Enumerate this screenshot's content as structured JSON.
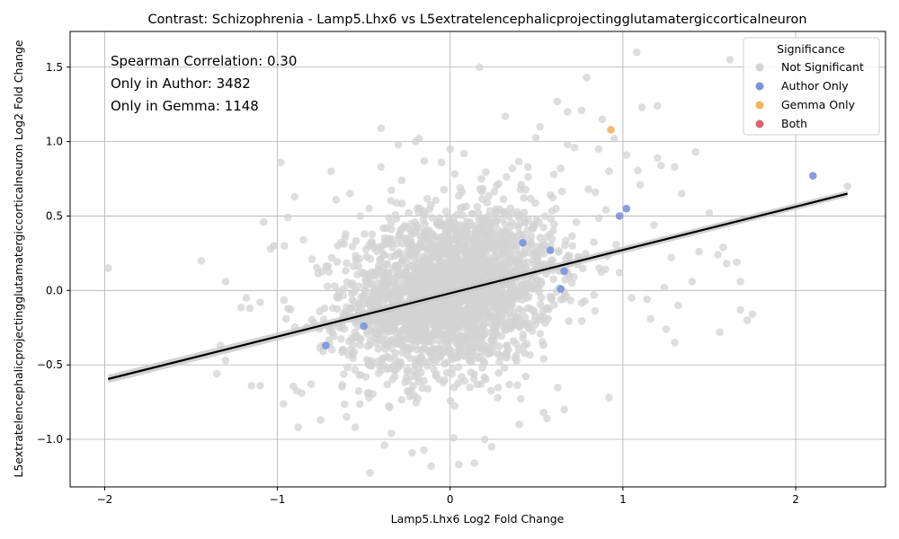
{
  "chart_data": {
    "type": "scatter",
    "title": "Contrast: Schizophrenia - Lamp5.Lhx6 vs L5extratelencephalicprojectingglutamatergiccorticalneuron",
    "xlabel": "Lamp5.Lhx6 Log2 Fold Change",
    "ylabel": "L5extratelencephalicprojectingglutamatergiccorticalneuron Log2 Fold Change",
    "xlim": [
      -2.2,
      2.52
    ],
    "ylim": [
      -1.32,
      1.74
    ],
    "x_ticks": [
      -2,
      -1,
      0,
      1,
      2
    ],
    "x_tick_labels": [
      "−2",
      "−1",
      "0",
      "1",
      "2"
    ],
    "y_ticks": [
      -1.0,
      -0.5,
      0.0,
      0.5,
      1.0,
      1.5
    ],
    "y_tick_labels": [
      "−1.0",
      "−0.5",
      "0.0",
      "0.5",
      "1.0",
      "1.5"
    ],
    "grid": true,
    "legend": {
      "title": "Significance",
      "placement": "top-right",
      "entries": [
        {
          "label": "Not Significant",
          "color": "#d3d3d3"
        },
        {
          "label": "Author Only",
          "color": "#7b93db"
        },
        {
          "label": "Gemma Only",
          "color": "#f5b25a"
        },
        {
          "label": "Both",
          "color": "#e06276"
        }
      ]
    },
    "annotations": [
      "Spearman Correlation: 0.30",
      "Only in Author: 3482",
      "Only in Gemma: 1148"
    ],
    "regression": {
      "x": [
        -1.98,
        2.3
      ],
      "y": [
        -0.595,
        0.65
      ],
      "ci_halfwidth": 0.022
    },
    "series": [
      {
        "name": "Author Only",
        "color": "#7b93db",
        "points": [
          [
            2.1,
            0.77
          ],
          [
            1.02,
            0.55
          ],
          [
            0.98,
            0.5
          ],
          [
            0.42,
            0.32
          ],
          [
            0.58,
            0.27
          ],
          [
            0.66,
            0.13
          ],
          [
            0.64,
            0.01
          ],
          [
            -0.72,
            -0.37
          ],
          [
            -0.5,
            -0.24
          ]
        ]
      },
      {
        "name": "Gemma Only",
        "color": "#f5b25a",
        "points": [
          [
            0.93,
            1.08
          ]
        ]
      },
      {
        "name": "Both",
        "color": "#e06276",
        "points": []
      },
      {
        "name": "Not Significant",
        "color": "#d3d3d3",
        "points": [
          [
            -1.98,
            0.15
          ],
          [
            -1.44,
            0.2
          ],
          [
            -1.3,
            0.06
          ],
          [
            -1.3,
            -0.47
          ],
          [
            -1.33,
            -0.37
          ],
          [
            -1.35,
            -0.56
          ],
          [
            -1.18,
            -0.05
          ],
          [
            -1.15,
            -0.64
          ],
          [
            -1.1,
            -0.64
          ],
          [
            -1.16,
            -0.12
          ],
          [
            -1.1,
            -0.08
          ],
          [
            -1.08,
            0.46
          ],
          [
            -1.04,
            0.28
          ],
          [
            -1.02,
            0.3
          ],
          [
            -0.98,
            0.86
          ],
          [
            -0.96,
            0.3
          ],
          [
            -0.95,
            -0.19
          ],
          [
            -0.94,
            0.49
          ],
          [
            -0.9,
            0.63
          ],
          [
            -0.88,
            -0.92
          ],
          [
            -0.86,
            -0.69
          ],
          [
            -0.85,
            0.34
          ],
          [
            -0.8,
            0.21
          ],
          [
            -0.75,
            -0.87
          ],
          [
            -0.69,
            0.8
          ],
          [
            -0.66,
            0.61
          ],
          [
            -0.6,
            -0.85
          ],
          [
            -0.58,
            0.65
          ],
          [
            -0.55,
            -0.92
          ],
          [
            -0.52,
            0.5
          ],
          [
            -0.4,
            1.09
          ],
          [
            -0.4,
            0.83
          ],
          [
            -0.38,
            -1.04
          ],
          [
            -0.34,
            -0.96
          ],
          [
            -0.3,
            0.98
          ],
          [
            -0.28,
            0.74
          ],
          [
            -0.22,
            -1.09
          ],
          [
            -0.2,
            1.0
          ],
          [
            -0.18,
            1.02
          ],
          [
            -0.15,
            0.87
          ],
          [
            -0.11,
            -1.18
          ],
          [
            -0.05,
            0.86
          ],
          [
            0.0,
            0.95
          ],
          [
            0.02,
            -0.99
          ],
          [
            0.05,
            -1.17
          ],
          [
            0.08,
            0.92
          ],
          [
            0.14,
            -1.16
          ],
          [
            0.17,
            1.5
          ],
          [
            0.2,
            -1.0
          ],
          [
            0.24,
            -1.05
          ],
          [
            0.32,
            1.17
          ],
          [
            0.36,
            0.82
          ],
          [
            0.4,
            -0.9
          ],
          [
            0.45,
            0.83
          ],
          [
            0.52,
            1.1
          ],
          [
            0.54,
            -0.82
          ],
          [
            0.56,
            -0.86
          ],
          [
            0.6,
            0.78
          ],
          [
            0.62,
            1.27
          ],
          [
            0.64,
            0.82
          ],
          [
            0.66,
            -0.8
          ],
          [
            0.68,
            1.2
          ],
          [
            0.68,
            0.98
          ],
          [
            0.72,
            0.96
          ],
          [
            0.76,
            1.21
          ],
          [
            0.79,
            1.43
          ],
          [
            0.8,
            0.68
          ],
          [
            0.84,
            0.66
          ],
          [
            0.86,
            0.95
          ],
          [
            0.88,
            1.15
          ],
          [
            0.92,
            0.8
          ],
          [
            0.92,
            -0.72
          ],
          [
            0.95,
            1.02
          ],
          [
            0.98,
            0.12
          ],
          [
            1.02,
            0.91
          ],
          [
            1.05,
            -0.05
          ],
          [
            1.08,
            1.6
          ],
          [
            1.1,
            0.71
          ],
          [
            1.11,
            1.23
          ],
          [
            1.14,
            -0.06
          ],
          [
            1.16,
            -0.19
          ],
          [
            1.18,
            0.44
          ],
          [
            1.2,
            1.24
          ],
          [
            1.2,
            0.89
          ],
          [
            1.22,
            0.84
          ],
          [
            1.24,
            0.02
          ],
          [
            1.25,
            -0.26
          ],
          [
            1.28,
            0.22
          ],
          [
            1.3,
            0.83
          ],
          [
            1.3,
            -0.35
          ],
          [
            1.32,
            -0.1
          ],
          [
            1.34,
            0.65
          ],
          [
            1.4,
            0.06
          ],
          [
            1.42,
            0.93
          ],
          [
            1.44,
            0.26
          ],
          [
            1.5,
            0.52
          ],
          [
            1.55,
            0.24
          ],
          [
            1.56,
            -0.28
          ],
          [
            1.58,
            0.29
          ],
          [
            1.6,
            0.18
          ],
          [
            1.62,
            1.55
          ],
          [
            1.66,
            0.19
          ],
          [
            1.68,
            0.06
          ],
          [
            1.68,
            -0.13
          ],
          [
            1.72,
            -0.2
          ],
          [
            1.75,
            -0.16
          ],
          [
            2.3,
            0.7
          ]
        ]
      }
    ]
  }
}
